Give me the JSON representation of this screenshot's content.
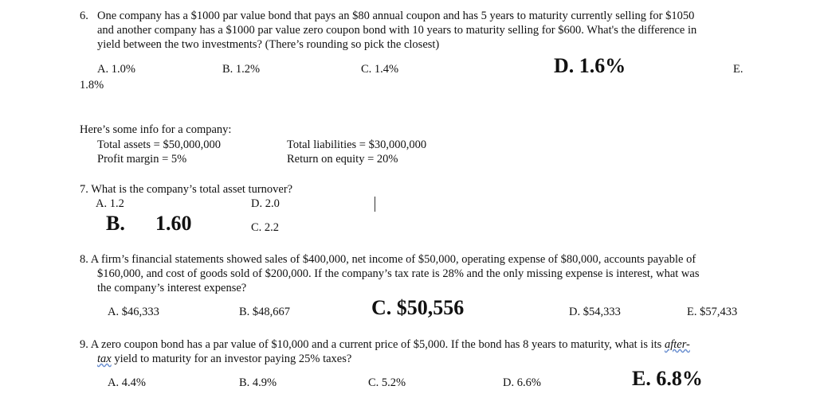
{
  "q6": {
    "num": "6.",
    "lines": [
      "One company has a $1000 par value bond that pays an $80 annual coupon and has 5 years to maturity currently selling for $1050",
      "and another company has a $1000 par value zero coupon bond with 10 years to maturity selling for $600. What's the difference in",
      "yield between the two investments? (There’s rounding so pick the closest)"
    ],
    "options": [
      "A.  1.0%",
      "B.  1.2%",
      "C.  1.4%",
      "D.  1.6%",
      "E.",
      "1.8%"
    ]
  },
  "info": {
    "intro": "Here’s some info for a company:",
    "total_assets": "Total assets = $50,000,000",
    "total_liabilities": "Total liabilities = $30,000,000",
    "profit_margin": "Profit margin = 5%",
    "roe": "Return on equity = 20%"
  },
  "q7": {
    "question": "7. What is the company’s total asset turnover?",
    "options": [
      "A.    1.2",
      "B.",
      "1.60",
      "C.  2.2",
      "D.  2.0"
    ]
  },
  "q8": {
    "lines": [
      "8. A firm’s financial statements showed sales of $400,000, net income of $50,000, operating expense of $80,000, accounts payable of",
      "$160,000, and cost of goods sold of $200,000. If the company’s tax rate is 28% and the only missing expense is interest, what was",
      "the company’s interest expense?"
    ],
    "options": [
      "A. $46,333",
      "B. $48,667",
      "C. $50,556",
      "D. $54,333",
      "E. $57,433"
    ]
  },
  "q9": {
    "line1": "9. A zero coupon bond has a par value of $10,000 and a current price of $5,000. If the bond has 8 years to maturity, what is its",
    "line1_em": "after-",
    "line2_em": "tax",
    "line2": " yield to maturity for an investor paying 25% taxes?",
    "options": [
      "A.  4.4%",
      "B.  4.9%",
      "C.  5.2%",
      "D.  6.6%",
      "E.  6.8%"
    ]
  }
}
